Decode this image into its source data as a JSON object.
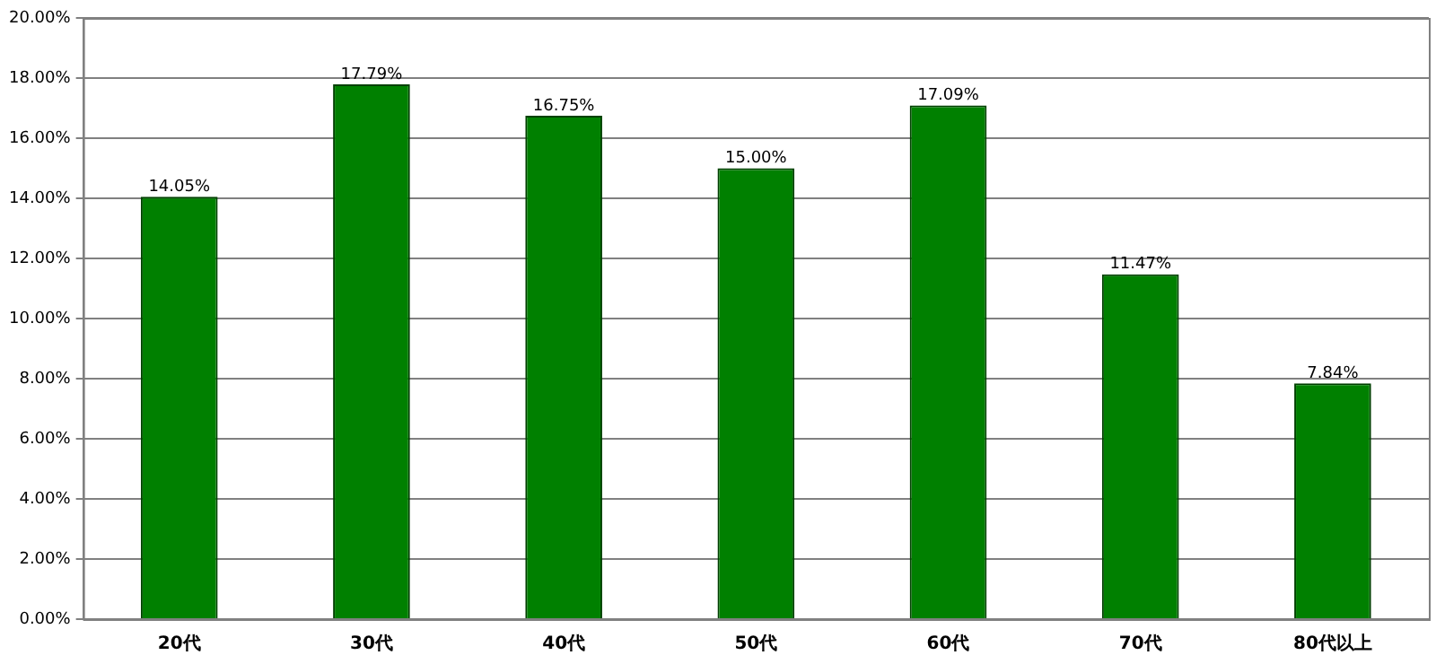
{
  "chart_data": {
    "type": "bar",
    "categories": [
      "20代",
      "30代",
      "40代",
      "50代",
      "60代",
      "70代",
      "80代以上"
    ],
    "values": [
      14.05,
      17.79,
      16.75,
      15.0,
      17.09,
      11.47,
      7.84
    ],
    "value_labels": [
      "14.05%",
      "17.79%",
      "16.75%",
      "15.00%",
      "17.09%",
      "11.47%",
      "7.84%"
    ],
    "color": "#008000",
    "ylim": [
      0,
      20
    ],
    "yticks": [
      {
        "value": 0,
        "label": "0.00%"
      },
      {
        "value": 2,
        "label": "2.00%"
      },
      {
        "value": 4,
        "label": "4.00%"
      },
      {
        "value": 6,
        "label": "6.00%"
      },
      {
        "value": 8,
        "label": "8.00%"
      },
      {
        "value": 10,
        "label": "10.00%"
      },
      {
        "value": 12,
        "label": "12.00%"
      },
      {
        "value": 14,
        "label": "14.00%"
      },
      {
        "value": 16,
        "label": "16.00%"
      },
      {
        "value": 18,
        "label": "18.00%"
      },
      {
        "value": 20,
        "label": "20.00%"
      }
    ],
    "grid": "y",
    "legend": false
  }
}
